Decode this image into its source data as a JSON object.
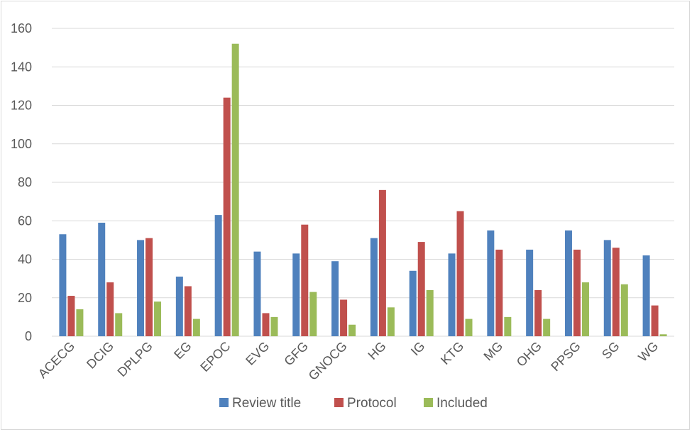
{
  "chart_data": {
    "type": "bar",
    "categories": [
      "ACECG",
      "DCIG",
      "DPLPG",
      "EG",
      "EPOC",
      "EVG",
      "GFG",
      "GNOCG",
      "HG",
      "IG",
      "KTG",
      "MG",
      "OHG",
      "PPSG",
      "SG",
      "WG"
    ],
    "series": [
      {
        "name": "Review title",
        "color": "#4f81bd",
        "values": [
          53,
          59,
          50,
          31,
          63,
          44,
          43,
          39,
          51,
          34,
          43,
          55,
          45,
          55,
          50,
          42
        ]
      },
      {
        "name": "Protocol",
        "color": "#c0504d",
        "values": [
          21,
          28,
          51,
          26,
          124,
          12,
          58,
          19,
          76,
          49,
          65,
          45,
          24,
          45,
          46,
          16
        ]
      },
      {
        "name": "Included",
        "color": "#9bbb59",
        "values": [
          14,
          12,
          18,
          9,
          152,
          10,
          23,
          6,
          15,
          24,
          9,
          10,
          9,
          28,
          27,
          1
        ]
      }
    ],
    "yticks": [
      "0",
      "20",
      "40",
      "60",
      "80",
      "100",
      "120",
      "140",
      "160"
    ],
    "ylim": [
      0,
      160
    ],
    "grid": true,
    "legend_position": "bottom"
  }
}
